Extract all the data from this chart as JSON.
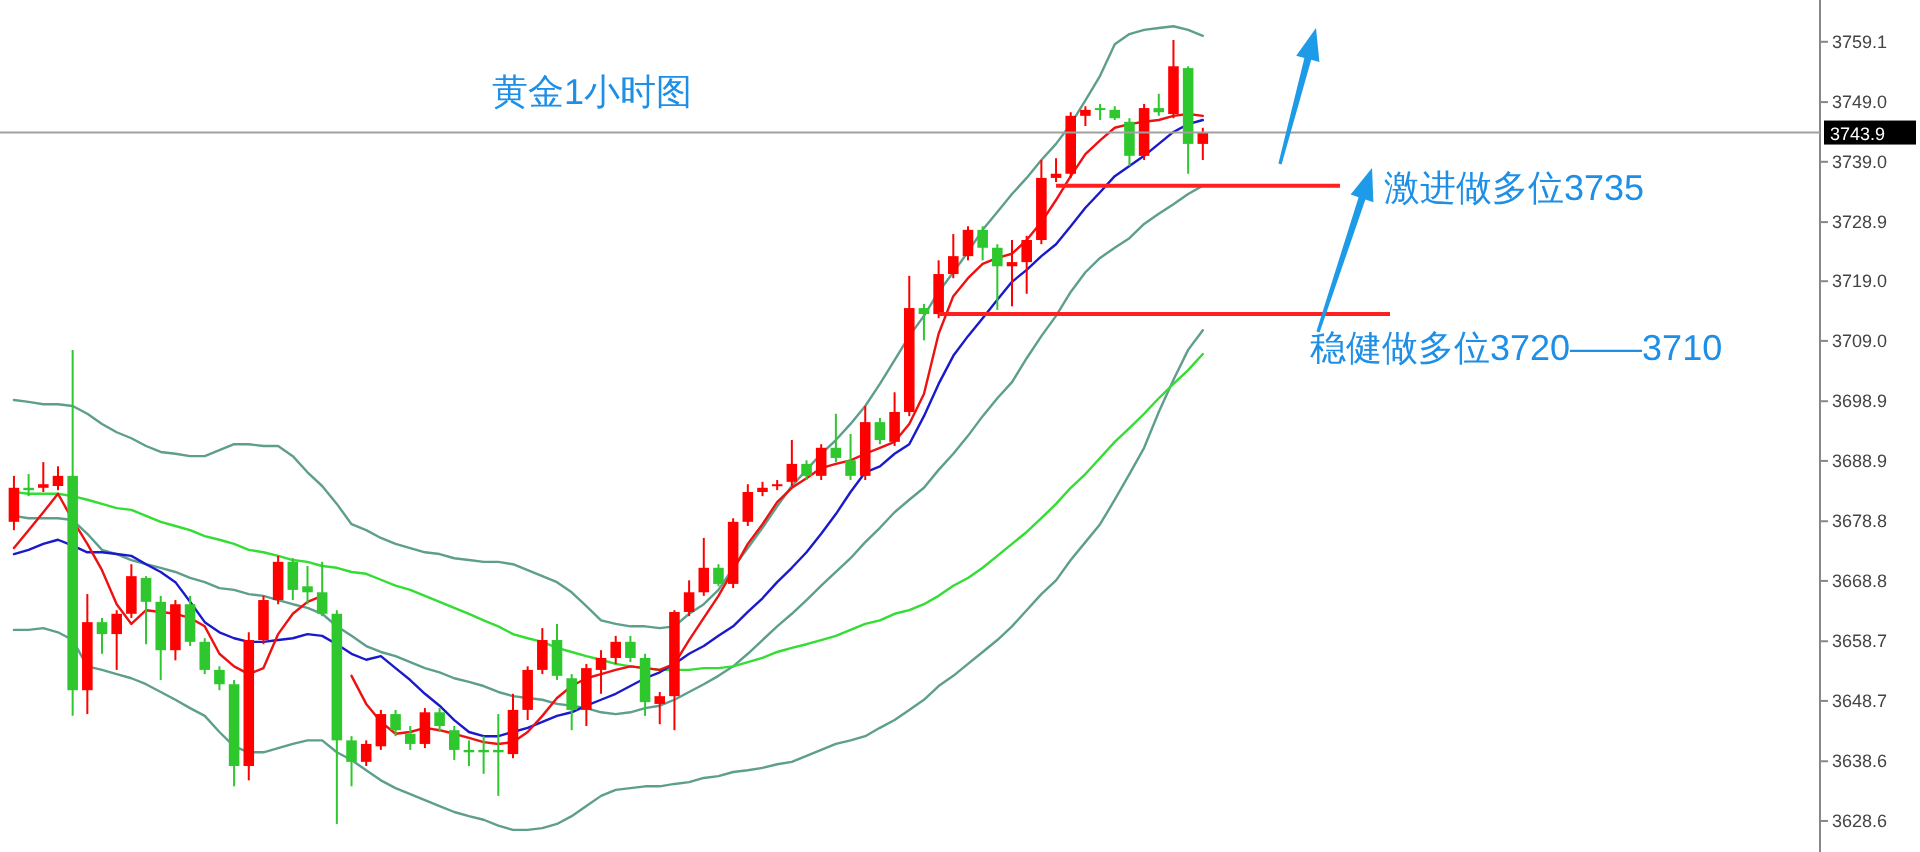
{
  "chart_data": {
    "type": "candlestick",
    "title": "黄金1小时图",
    "categories": [
      null,
      null,
      null,
      null,
      null,
      null,
      null,
      null,
      null,
      null,
      null,
      null,
      null,
      null,
      null,
      null,
      null,
      null,
      null,
      null,
      null,
      null,
      null,
      null,
      null,
      null,
      null,
      null,
      null,
      null,
      null,
      null,
      null,
      null,
      null,
      null,
      null,
      null,
      null,
      null,
      null,
      null,
      null,
      null,
      null,
      null,
      null,
      null,
      null,
      null,
      null,
      null,
      null,
      null,
      null,
      null,
      null,
      null,
      null,
      null,
      null,
      null,
      null,
      null,
      null,
      null,
      null,
      null,
      null,
      null,
      null,
      null,
      null,
      null,
      null,
      null,
      null,
      null,
      null,
      null,
      null,
      null
    ],
    "ohlc": [
      [
        3678.7,
        3686.4,
        3677.3,
        3684.4
      ],
      [
        3684.4,
        3686.7,
        3683.0,
        3684.0
      ],
      [
        3684.4,
        3688.7,
        3683.7,
        3685.0
      ],
      [
        3684.7,
        3688.0,
        3684.0,
        3686.4
      ],
      [
        3686.4,
        3707.5,
        3646.2,
        3650.5
      ],
      [
        3650.5,
        3666.6,
        3646.5,
        3661.9
      ],
      [
        3661.9,
        3662.6,
        3656.6,
        3659.9
      ],
      [
        3659.9,
        3663.9,
        3653.9,
        3663.3
      ],
      [
        3663.3,
        3671.6,
        3662.6,
        3669.6
      ],
      [
        3669.3,
        3669.6,
        3658.2,
        3665.3
      ],
      [
        3665.3,
        3666.3,
        3652.2,
        3657.2
      ],
      [
        3657.2,
        3665.6,
        3655.5,
        3664.9
      ],
      [
        3664.9,
        3666.3,
        3657.9,
        3658.6
      ],
      [
        3658.6,
        3659.2,
        3653.2,
        3653.9
      ],
      [
        3653.9,
        3654.5,
        3650.5,
        3651.5
      ],
      [
        3651.5,
        3652.2,
        3634.4,
        3637.8
      ],
      [
        3637.8,
        3660.2,
        3635.4,
        3658.9
      ],
      [
        3658.9,
        3666.3,
        3658.2,
        3665.6
      ],
      [
        3665.6,
        3673.0,
        3664.9,
        3672.0
      ],
      [
        3672.0,
        3672.6,
        3665.6,
        3667.3
      ],
      [
        3667.9,
        3671.3,
        3664.9,
        3666.9
      ],
      [
        3666.9,
        3672.0,
        3662.9,
        3663.3
      ],
      [
        3663.3,
        3663.9,
        3628.1,
        3642.1
      ],
      [
        3642.1,
        3642.8,
        3634.4,
        3638.5
      ],
      [
        3638.5,
        3642.1,
        3637.8,
        3641.5
      ],
      [
        3641.1,
        3647.2,
        3640.5,
        3646.5
      ],
      [
        3646.5,
        3647.2,
        3642.8,
        3643.8
      ],
      [
        3643.2,
        3644.5,
        3640.5,
        3641.5
      ],
      [
        3641.5,
        3647.5,
        3640.8,
        3646.8
      ],
      [
        3646.8,
        3647.5,
        3643.5,
        3644.5
      ],
      [
        3643.8,
        3644.5,
        3638.8,
        3640.5
      ],
      [
        3640.5,
        3642.1,
        3637.8,
        3640.1
      ],
      [
        3640.5,
        3642.8,
        3636.5,
        3640.1
      ],
      [
        3640.5,
        3646.5,
        3632.8,
        3640.1
      ],
      [
        3639.8,
        3649.9,
        3639.1,
        3647.2
      ],
      [
        3647.2,
        3654.5,
        3645.5,
        3653.9
      ],
      [
        3653.9,
        3660.9,
        3653.2,
        3658.9
      ],
      [
        3658.9,
        3661.6,
        3652.2,
        3652.9
      ],
      [
        3652.5,
        3653.2,
        3643.8,
        3647.2
      ],
      [
        3647.2,
        3654.9,
        3644.5,
        3654.2
      ],
      [
        3653.9,
        3657.2,
        3649.9,
        3655.9
      ],
      [
        3655.9,
        3659.6,
        3654.9,
        3658.6
      ],
      [
        3658.6,
        3659.6,
        3655.2,
        3655.9
      ],
      [
        3655.9,
        3656.6,
        3646.2,
        3648.5
      ],
      [
        3648.2,
        3650.2,
        3644.8,
        3649.5
      ],
      [
        3649.5,
        3663.9,
        3643.8,
        3663.6
      ],
      [
        3663.6,
        3668.9,
        3662.9,
        3666.9
      ],
      [
        3666.9,
        3676.0,
        3666.3,
        3671.0
      ],
      [
        3671.0,
        3671.6,
        3667.9,
        3668.3
      ],
      [
        3668.3,
        3679.3,
        3667.6,
        3678.7
      ],
      [
        3678.7,
        3685.0,
        3678.0,
        3683.7
      ],
      [
        3683.7,
        3685.4,
        3683.0,
        3684.4
      ],
      [
        3684.7,
        3685.7,
        3684.0,
        3685.0
      ],
      [
        3685.4,
        3692.4,
        3684.7,
        3688.4
      ],
      [
        3688.4,
        3689.0,
        3685.7,
        3686.4
      ],
      [
        3686.4,
        3691.7,
        3685.7,
        3691.1
      ],
      [
        3691.1,
        3696.8,
        3688.7,
        3689.4
      ],
      [
        3689.0,
        3693.4,
        3685.7,
        3686.4
      ],
      [
        3686.4,
        3698.1,
        3685.7,
        3695.4
      ],
      [
        3695.4,
        3696.1,
        3691.7,
        3692.4
      ],
      [
        3692.1,
        3700.4,
        3691.4,
        3697.1
      ],
      [
        3697.1,
        3719.9,
        3696.4,
        3714.5
      ],
      [
        3714.5,
        3715.2,
        3709.1,
        3713.5
      ],
      [
        3713.5,
        3722.5,
        3712.8,
        3720.2
      ],
      [
        3720.2,
        3726.9,
        3719.5,
        3723.2
      ],
      [
        3723.2,
        3728.2,
        3722.5,
        3727.6
      ],
      [
        3727.6,
        3728.2,
        3722.5,
        3724.6
      ],
      [
        3724.6,
        3725.2,
        3714.2,
        3721.5
      ],
      [
        3721.5,
        3725.9,
        3714.8,
        3722.2
      ],
      [
        3722.2,
        3726.6,
        3716.9,
        3725.9
      ],
      [
        3725.9,
        3739.3,
        3725.2,
        3736.3
      ],
      [
        3736.3,
        3739.6,
        3735.6,
        3737.0
      ],
      [
        3737.0,
        3747.3,
        3736.3,
        3746.7
      ],
      [
        3746.7,
        3748.3,
        3745.0,
        3747.7
      ],
      [
        3748.0,
        3748.7,
        3746.0,
        3747.7
      ],
      [
        3747.7,
        3748.3,
        3746.0,
        3746.3
      ],
      [
        3745.7,
        3746.3,
        3738.3,
        3740.0
      ],
      [
        3740.0,
        3748.7,
        3739.3,
        3748.0
      ],
      [
        3748.0,
        3750.4,
        3746.7,
        3747.3
      ],
      [
        3747.0,
        3759.4,
        3746.3,
        3755.0
      ],
      [
        3754.7,
        3755.0,
        3737.0,
        3742.0
      ],
      [
        3742.0,
        3744.7,
        3739.3,
        3743.9
      ]
    ],
    "colors": [
      "#ff0000",
      "#2ec82e",
      "#ff0000",
      "#ff0000",
      "#2ec82e",
      "#ff0000",
      "#2ec82e",
      "#ff0000",
      "#ff0000",
      "#2ec82e",
      "#2ec82e",
      "#ff0000",
      "#2ec82e",
      "#2ec82e",
      "#2ec82e",
      "#2ec82e",
      "#ff0000",
      "#ff0000",
      "#ff0000",
      "#2ec82e",
      "#2ec82e",
      "#2ec82e",
      "#2ec82e",
      "#2ec82e",
      "#ff0000",
      "#ff0000",
      "#2ec82e",
      "#2ec82e",
      "#ff0000",
      "#2ec82e",
      "#2ec82e",
      "#2ec82e",
      "#2ec82e",
      "#2ec82e",
      "#ff0000",
      "#ff0000",
      "#ff0000",
      "#2ec82e",
      "#2ec82e",
      "#ff0000",
      "#ff0000",
      "#ff0000",
      "#2ec82e",
      "#2ec82e",
      "#ff0000",
      "#ff0000",
      "#ff0000",
      "#ff0000",
      "#2ec82e",
      "#ff0000",
      "#ff0000",
      "#ff0000",
      "#ff0000",
      "#ff0000",
      "#2ec82e",
      "#ff0000",
      "#2ec82e",
      "#2ec82e",
      "#ff0000",
      "#2ec82e",
      "#ff0000",
      "#ff0000",
      "#2ec82e",
      "#ff0000",
      "#ff0000",
      "#ff0000",
      "#2ec82e",
      "#2ec82e",
      "#ff0000",
      "#ff0000",
      "#ff0000",
      "#ff0000",
      "#ff0000",
      "#ff0000",
      "#2ec82e",
      "#2ec82e",
      "#2ec82e",
      "#ff0000",
      "#2ec82e",
      "#ff0000",
      "#2ec82e",
      "#ff0000"
    ],
    "series": [
      {
        "type": "line",
        "color": "#5e9e8c",
        "values": [
          3699.1,
          3698.8,
          3698.4,
          3698.4,
          3698.1,
          3696.8,
          3695.1,
          3693.7,
          3692.7,
          3691.4,
          3690.4,
          3690.1,
          3689.7,
          3689.7,
          3690.7,
          3691.7,
          3691.7,
          3691.4,
          3691.4,
          3689.7,
          3687.0,
          3684.7,
          3681.7,
          3678.3,
          3677.3,
          3676.0,
          3675.0,
          3674.3,
          3673.6,
          3673.3,
          3672.6,
          3672.3,
          3672.0,
          3672.0,
          3671.6,
          3670.6,
          3669.6,
          3668.6,
          3666.9,
          3664.6,
          3662.2,
          3661.6,
          3661.2,
          3661.2,
          3660.9,
          3661.2,
          3663.3,
          3664.9,
          3667.3,
          3671.0,
          3674.3,
          3677.7,
          3681.3,
          3684.7,
          3687.4,
          3690.1,
          3692.4,
          3695.1,
          3698.1,
          3701.8,
          3705.8,
          3709.8,
          3713.2,
          3717.2,
          3720.5,
          3723.9,
          3727.6,
          3730.6,
          3733.6,
          3736.3,
          3739.3,
          3742.0,
          3745.3,
          3749.3,
          3753.4,
          3758.7,
          3760.4,
          3761.1,
          3761.4,
          3761.7,
          3761.1,
          3760.1
        ]
      },
      {
        "type": "line",
        "color": "#5e9e8c",
        "values": [
          3679.7,
          3679.3,
          3679.3,
          3679.3,
          3679.0,
          3676.7,
          3674.0,
          3673.3,
          3672.3,
          3671.6,
          3671.0,
          3670.3,
          3669.3,
          3668.6,
          3667.6,
          3667.3,
          3666.6,
          3666.3,
          3665.6,
          3664.9,
          3664.3,
          3663.3,
          3661.2,
          3659.6,
          3657.9,
          3656.9,
          3656.2,
          3655.2,
          3654.2,
          3653.5,
          3652.5,
          3651.9,
          3651.2,
          3650.2,
          3649.5,
          3649.2,
          3648.9,
          3648.2,
          3647.9,
          3647.5,
          3646.8,
          3646.5,
          3646.8,
          3647.5,
          3647.9,
          3648.9,
          3650.2,
          3651.5,
          3652.9,
          3654.5,
          3656.6,
          3658.9,
          3661.2,
          3663.3,
          3665.6,
          3668.0,
          3670.3,
          3672.6,
          3675.3,
          3677.7,
          3680.3,
          3682.4,
          3684.4,
          3687.4,
          3690.1,
          3693.1,
          3696.4,
          3699.4,
          3702.1,
          3706.1,
          3709.8,
          3713.2,
          3717.2,
          3720.5,
          3722.9,
          3724.6,
          3726.2,
          3728.6,
          3730.3,
          3731.9,
          3733.6,
          3735.0
        ]
      },
      {
        "type": "line",
        "color": "#5e9e8c",
        "values": [
          3660.6,
          3660.6,
          3660.9,
          3660.2,
          3658.9,
          3654.5,
          3653.9,
          3653.2,
          3652.5,
          3651.5,
          3650.2,
          3648.9,
          3647.5,
          3646.2,
          3643.5,
          3641.1,
          3640.1,
          3640.1,
          3640.8,
          3641.5,
          3642.1,
          3642.1,
          3640.1,
          3638.8,
          3637.1,
          3635.4,
          3634.1,
          3633.1,
          3632.1,
          3631.1,
          3630.1,
          3629.4,
          3628.8,
          3627.8,
          3627.1,
          3627.1,
          3627.4,
          3628.1,
          3629.4,
          3631.1,
          3632.8,
          3633.8,
          3634.1,
          3634.4,
          3634.4,
          3634.8,
          3635.1,
          3635.8,
          3636.1,
          3636.8,
          3637.1,
          3637.5,
          3638.1,
          3638.5,
          3639.5,
          3640.5,
          3641.5,
          3642.1,
          3642.8,
          3644.2,
          3645.5,
          3647.2,
          3648.9,
          3651.2,
          3652.9,
          3654.9,
          3656.9,
          3658.9,
          3661.2,
          3663.9,
          3666.6,
          3668.9,
          3672.3,
          3675.3,
          3678.3,
          3682.4,
          3686.7,
          3691.1,
          3697.1,
          3702.5,
          3707.5,
          3710.8
        ]
      },
      {
        "type": "line",
        "color": "#33dd33",
        "values": [
          3683.7,
          3683.4,
          3683.4,
          3683.4,
          3683.0,
          3682.4,
          3681.7,
          3681.0,
          3680.7,
          3679.7,
          3678.7,
          3678.0,
          3677.3,
          3676.3,
          3675.7,
          3675.0,
          3674.0,
          3673.6,
          3673.0,
          3672.3,
          3672.0,
          3671.3,
          3671.0,
          3670.3,
          3670.0,
          3669.0,
          3668.0,
          3667.3,
          3666.3,
          3665.3,
          3664.3,
          3663.3,
          3662.2,
          3661.2,
          3659.9,
          3659.2,
          3658.6,
          3657.6,
          3656.9,
          3656.2,
          3655.6,
          3654.9,
          3654.5,
          3654.2,
          3653.9,
          3653.9,
          3653.9,
          3654.2,
          3654.2,
          3654.5,
          3655.2,
          3655.9,
          3656.9,
          3657.6,
          3658.2,
          3658.9,
          3659.6,
          3660.6,
          3661.6,
          3662.2,
          3663.3,
          3663.9,
          3664.9,
          3666.3,
          3668.0,
          3669.3,
          3671.0,
          3673.0,
          3675.0,
          3677.0,
          3679.3,
          3681.7,
          3684.4,
          3686.7,
          3689.4,
          3692.1,
          3694.4,
          3696.8,
          3699.4,
          3701.8,
          3704.1,
          3706.8
        ]
      },
      {
        "type": "line",
        "color": "#1a1acc",
        "values": [
          3673.3,
          3674.0,
          3675.0,
          3675.7,
          3674.7,
          3673.6,
          3673.6,
          3673.3,
          3673.0,
          3671.6,
          3670.3,
          3668.6,
          3665.3,
          3661.9,
          3660.2,
          3659.2,
          3658.6,
          3658.6,
          3658.9,
          3659.2,
          3659.9,
          3659.6,
          3658.2,
          3656.6,
          3655.6,
          3656.2,
          3654.2,
          3652.2,
          3649.9,
          3647.9,
          3645.5,
          3643.5,
          3642.8,
          3642.8,
          3643.5,
          3644.2,
          3645.2,
          3646.2,
          3646.8,
          3647.9,
          3648.9,
          3649.9,
          3651.2,
          3652.5,
          3653.5,
          3654.9,
          3656.6,
          3657.9,
          3659.6,
          3661.2,
          3663.6,
          3665.9,
          3668.6,
          3671.0,
          3673.6,
          3676.7,
          3680.0,
          3683.7,
          3687.0,
          3688.0,
          3690.1,
          3691.7,
          3696.4,
          3701.8,
          3706.5,
          3709.8,
          3712.8,
          3715.9,
          3718.9,
          3720.9,
          3723.2,
          3725.2,
          3728.2,
          3731.3,
          3733.9,
          3736.6,
          3738.3,
          3740.0,
          3742.0,
          3744.0,
          3745.3,
          3746.0
        ]
      },
      {
        "type": "line",
        "color": "#ee1111",
        "values": [
          3674.3,
          3677.3,
          3680.3,
          3683.4,
          3679.0,
          3675.0,
          3670.6,
          3664.9,
          3661.6,
          3663.9,
          3663.6,
          3663.3,
          3662.6,
          3661.2,
          3656.6,
          3654.5,
          3653.2,
          3654.2,
          3659.9,
          3663.3,
          3665.3,
          3666.3,
          null,
          3652.9,
          3648.2,
          3645.2,
          3643.2,
          3643.5,
          3644.2,
          3643.8,
          3643.2,
          3642.5,
          3641.8,
          3641.5,
          3641.8,
          3643.5,
          3646.2,
          3649.2,
          3651.2,
          3652.5,
          3653.2,
          3653.9,
          3654.5,
          3654.2,
          3653.9,
          3654.9,
          3658.9,
          3662.6,
          3666.3,
          3670.6,
          3675.0,
          3678.3,
          3682.0,
          3684.4,
          3686.0,
          3687.7,
          3688.4,
          3689.0,
          3690.1,
          3691.1,
          3692.1,
          3695.1,
          3700.1,
          3710.2,
          3716.5,
          3719.5,
          3721.9,
          3722.9,
          3723.6,
          3725.9,
          3728.9,
          3732.6,
          3736.6,
          3740.3,
          3742.6,
          3744.7,
          3745.3,
          3745.7,
          3746.0,
          3746.7,
          3747.0,
          3746.7
        ]
      }
    ],
    "ylim": [
      3623.4,
      3766.1
    ],
    "yticks": [
      {
        "value": 3759.1,
        "label": "3759.1"
      },
      {
        "value": 3749.0,
        "label": "3749.0"
      },
      {
        "value": 3739.0,
        "label": "3739.0"
      },
      {
        "value": 3728.9,
        "label": "3728.9"
      },
      {
        "value": 3719.0,
        "label": "3719.0"
      },
      {
        "value": 3709.0,
        "label": "3709.0"
      },
      {
        "value": 3698.9,
        "label": "3698.9"
      },
      {
        "value": 3688.9,
        "label": "3688.9"
      },
      {
        "value": 3678.8,
        "label": "3678.8"
      },
      {
        "value": 3668.8,
        "label": "3668.8"
      },
      {
        "value": 3658.7,
        "label": "3658.7"
      },
      {
        "value": 3648.7,
        "label": "3648.7"
      },
      {
        "value": 3638.6,
        "label": "3638.6"
      },
      {
        "value": 3628.6,
        "label": "3628.6"
      }
    ],
    "tick_labels": "y",
    "ref_lines": [
      {
        "axis": "y",
        "value": 3743.9,
        "label": "3743.9",
        "color": "#a0a0a0"
      },
      {
        "axis": "y",
        "value": 3735,
        "label": "激进做多位3735",
        "color": "#ff2020"
      },
      {
        "axis": "y",
        "value": 3713.5,
        "label": "稳健做多位3720——3710",
        "color": "#ff2020"
      }
    ]
  }
}
